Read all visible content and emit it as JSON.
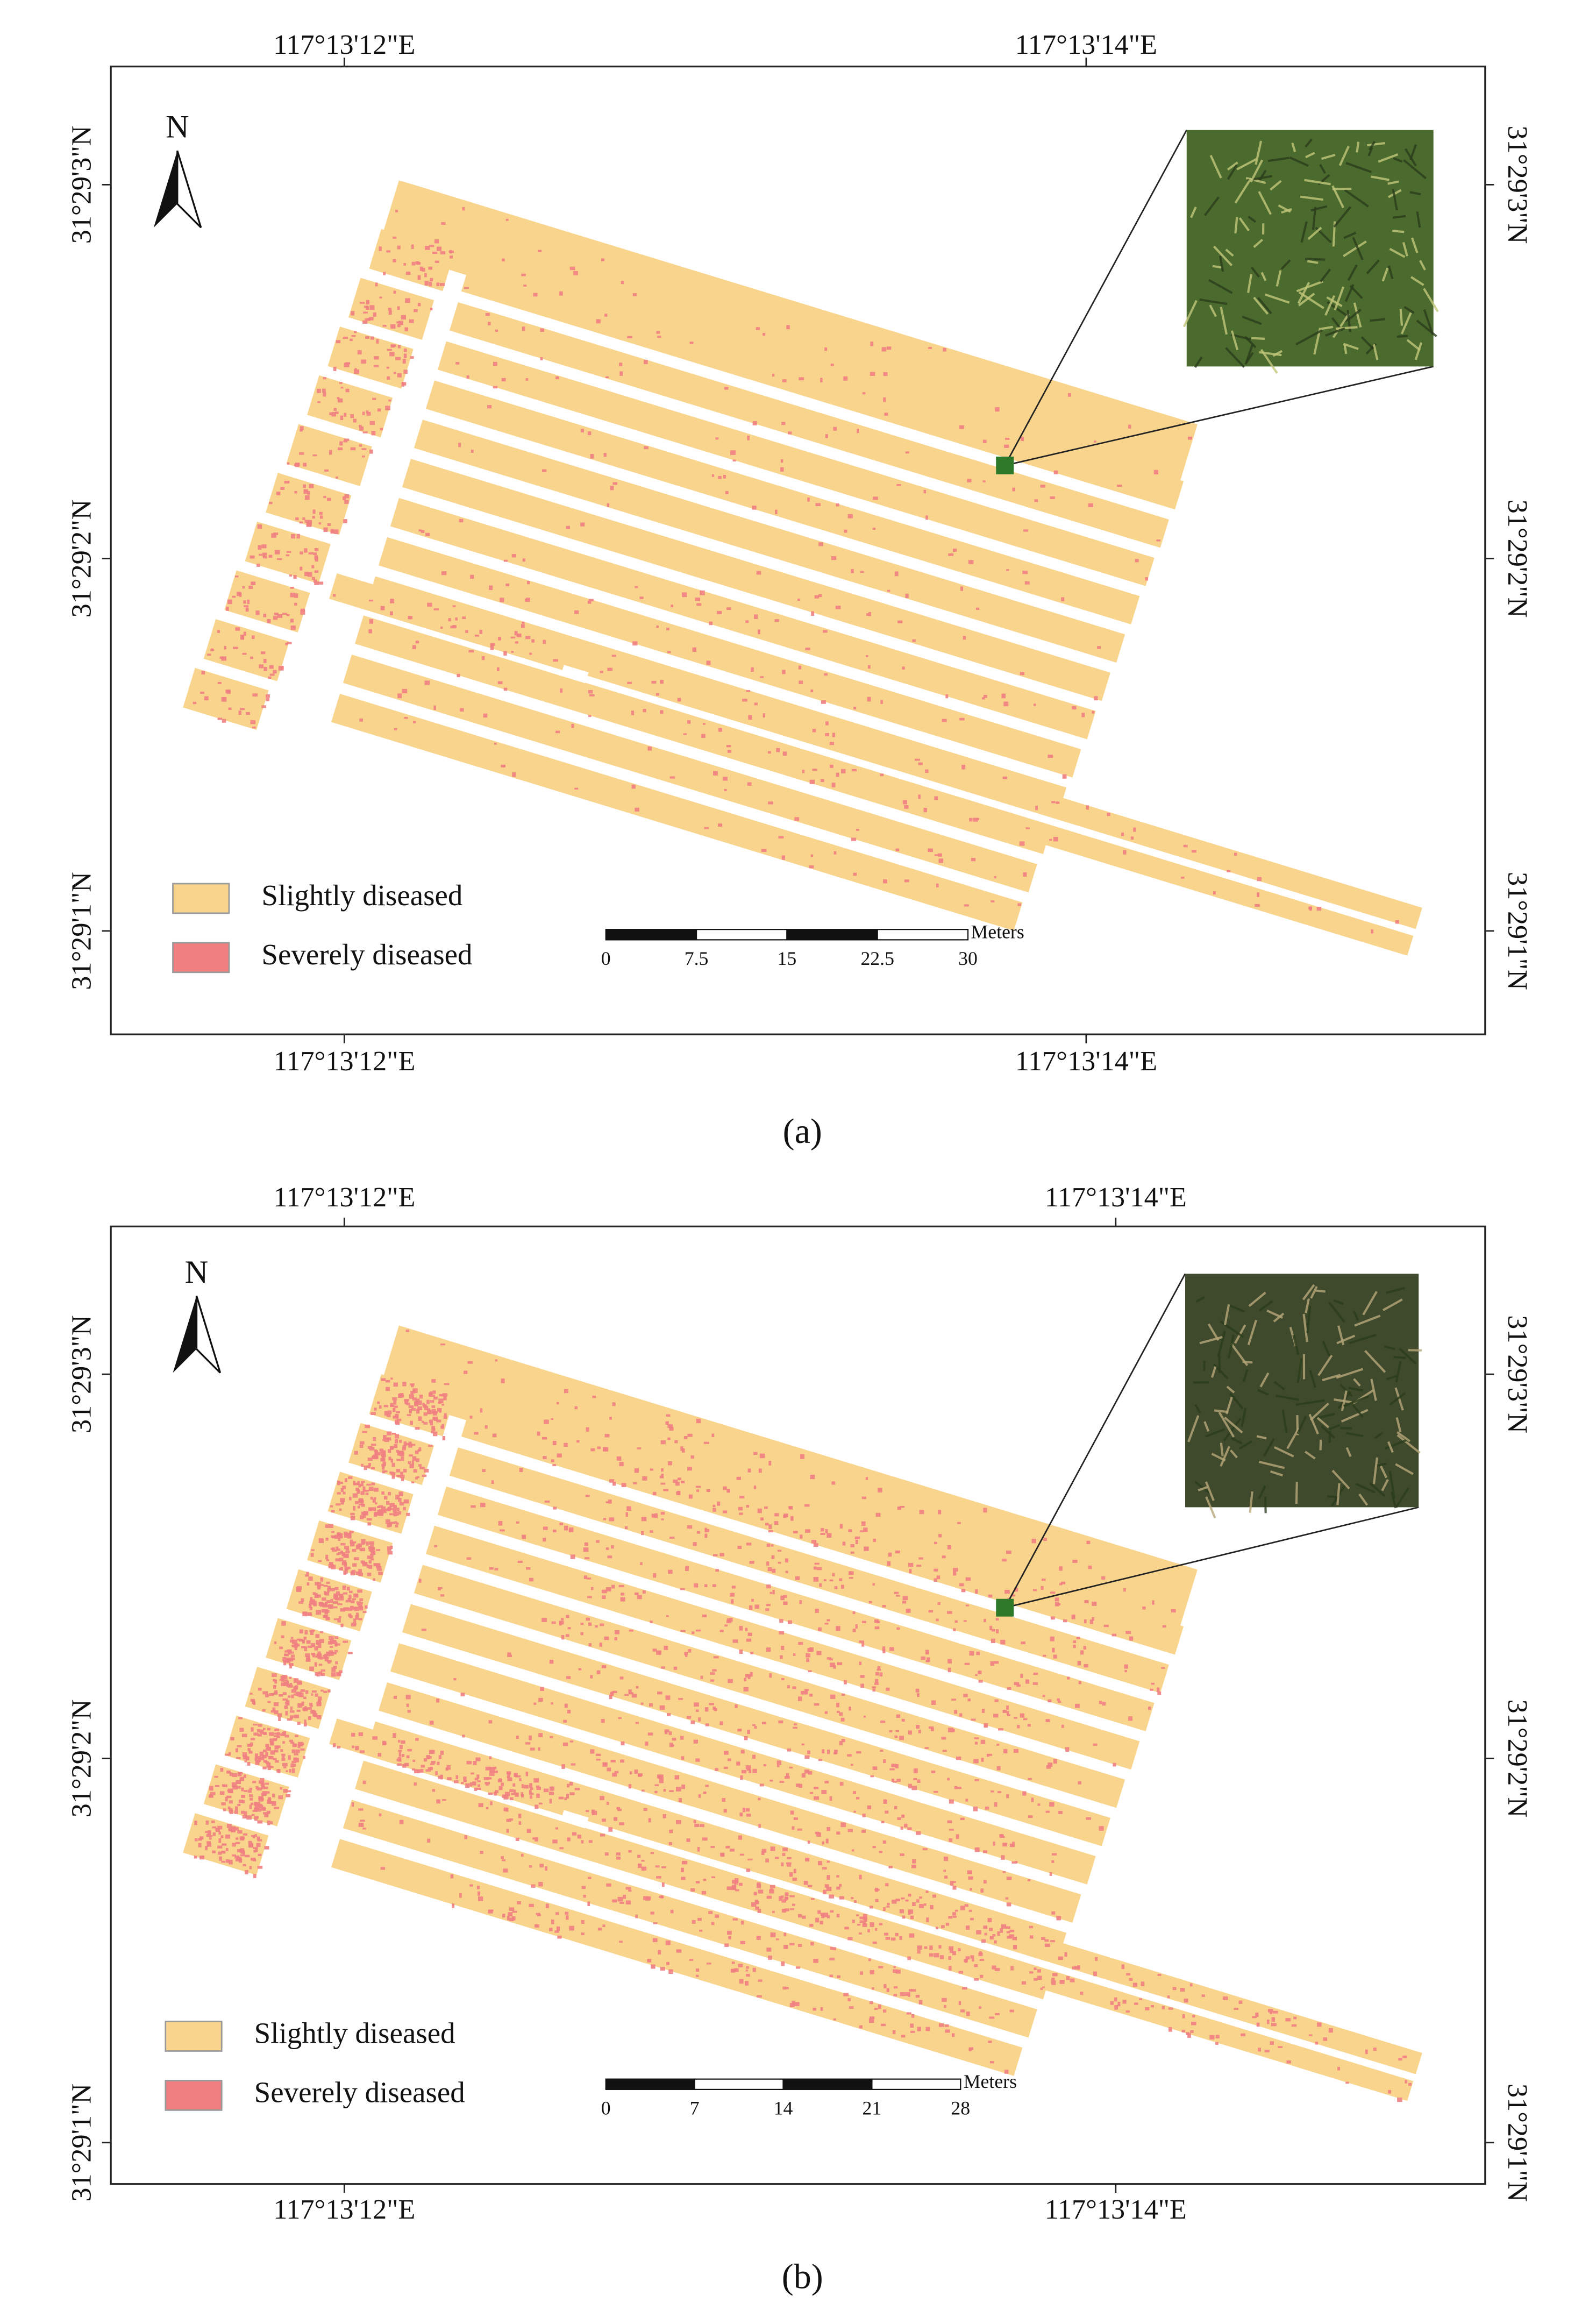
{
  "panels": [
    {
      "caption": "(a)",
      "top_labels": [
        "117°13'12\"E",
        "117°13'14\"E"
      ],
      "bottom_labels": [
        "117°13'12\"E",
        "117°13'14\"E"
      ],
      "left_labels": [
        "31°29'3\"N",
        "31°29'2\"N",
        "31°29'1\"N"
      ],
      "right_labels": [
        "31°29'3\"N",
        "31°29'2\"N",
        "31°29'1\"N"
      ],
      "north": "N",
      "legend": [
        "Slightly diseased",
        "Severely diseased"
      ],
      "scale_unit": "Meters",
      "scale_ticks": [
        0,
        7.5,
        15,
        22.5,
        30
      ]
    },
    {
      "caption": "(b)",
      "top_labels": [
        "117°13'12\"E",
        "117°13'14\"E"
      ],
      "bottom_labels": [
        "117°13'12\"E",
        "117°13'14\"E"
      ],
      "left_labels": [
        "31°29'3\"N",
        "31°29'2\"N",
        "31°29'1\"N"
      ],
      "right_labels": [
        "31°29'3\"N",
        "31°29'2\"N",
        "31°29'1\"N"
      ],
      "north": "N",
      "legend": [
        "Slightly diseased",
        "Severely diseased"
      ],
      "scale_unit": "Meters",
      "scale_ticks": [
        0,
        7,
        14,
        21,
        28
      ]
    }
  ]
}
